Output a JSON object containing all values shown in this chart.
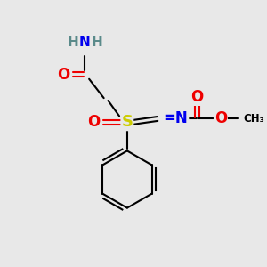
{
  "bg_color": "#e8e8e8",
  "atom_colors": {
    "C": "#000000",
    "H": "#5a8a8a",
    "N": "#0000ee",
    "O": "#ee0000",
    "S": "#cccc00"
  },
  "bond_color": "#000000",
  "figsize": [
    3.0,
    3.0
  ],
  "dpi": 100
}
